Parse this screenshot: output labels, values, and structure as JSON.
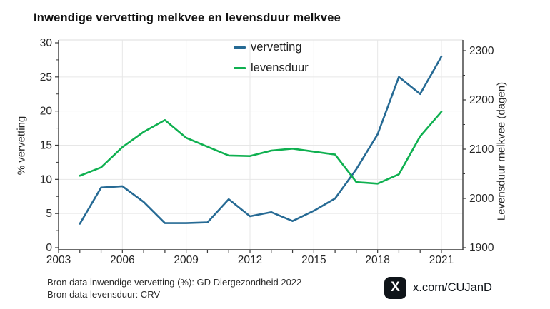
{
  "title": "Inwendige vervetting melkvee en levensduur melkvee",
  "legend": {
    "items": [
      {
        "label": "vervetting",
        "color": "#266a94"
      },
      {
        "label": "levensduur",
        "color": "#0fb050"
      }
    ]
  },
  "footer": {
    "line1": "Bron data inwendige vervetting (%): GD Diergezondheid 2022",
    "line2": "Bron data levensduur: CRV",
    "handle": "x.com/CUJanD",
    "x_logo_glyph": "X"
  },
  "chart_data": {
    "type": "line",
    "title": "Inwendige vervetting melkvee en levensduur melkvee",
    "x": [
      2004,
      2005,
      2006,
      2007,
      2008,
      2009,
      2010,
      2011,
      2012,
      2013,
      2014,
      2015,
      2016,
      2017,
      2018,
      2019,
      2020,
      2021
    ],
    "series": [
      {
        "name": "vervetting",
        "axis": "left",
        "color": "#266a94",
        "values": [
          3.5,
          8.8,
          9.0,
          6.7,
          3.6,
          3.6,
          3.7,
          7.1,
          4.6,
          5.2,
          3.9,
          5.4,
          7.2,
          11.5,
          16.6,
          25.0,
          22.5,
          28.0
        ]
      },
      {
        "name": "levensduur",
        "axis": "right",
        "color": "#0fb050",
        "values": [
          2046,
          2063,
          2104,
          2135,
          2159,
          2123,
          2105,
          2087,
          2086,
          2097,
          2101,
          2095,
          2089,
          2033,
          2030,
          2049,
          2126,
          2176
        ]
      }
    ],
    "x_axis": {
      "range": [
        2003,
        2021
      ],
      "tick_labels": [
        2003,
        2006,
        2009,
        2012,
        2015,
        2018,
        2021
      ],
      "minor_ticks_every_year": true
    },
    "left_axis": {
      "label": "% vervetting",
      "min": 0,
      "max": 30,
      "ticks": [
        0,
        5,
        10,
        15,
        20,
        25,
        30
      ],
      "minor_step": 2.5
    },
    "right_axis": {
      "label": "Levensduur melkvee (dagen)",
      "min": 1900,
      "max": 2300,
      "ticks": [
        1900,
        2000,
        2100,
        2200,
        2300
      ],
      "minor_step": 50
    },
    "grid": true,
    "grid_color": "#e7e7e7",
    "spine_color": "#3a3a3a",
    "legend_position": "top-center"
  }
}
